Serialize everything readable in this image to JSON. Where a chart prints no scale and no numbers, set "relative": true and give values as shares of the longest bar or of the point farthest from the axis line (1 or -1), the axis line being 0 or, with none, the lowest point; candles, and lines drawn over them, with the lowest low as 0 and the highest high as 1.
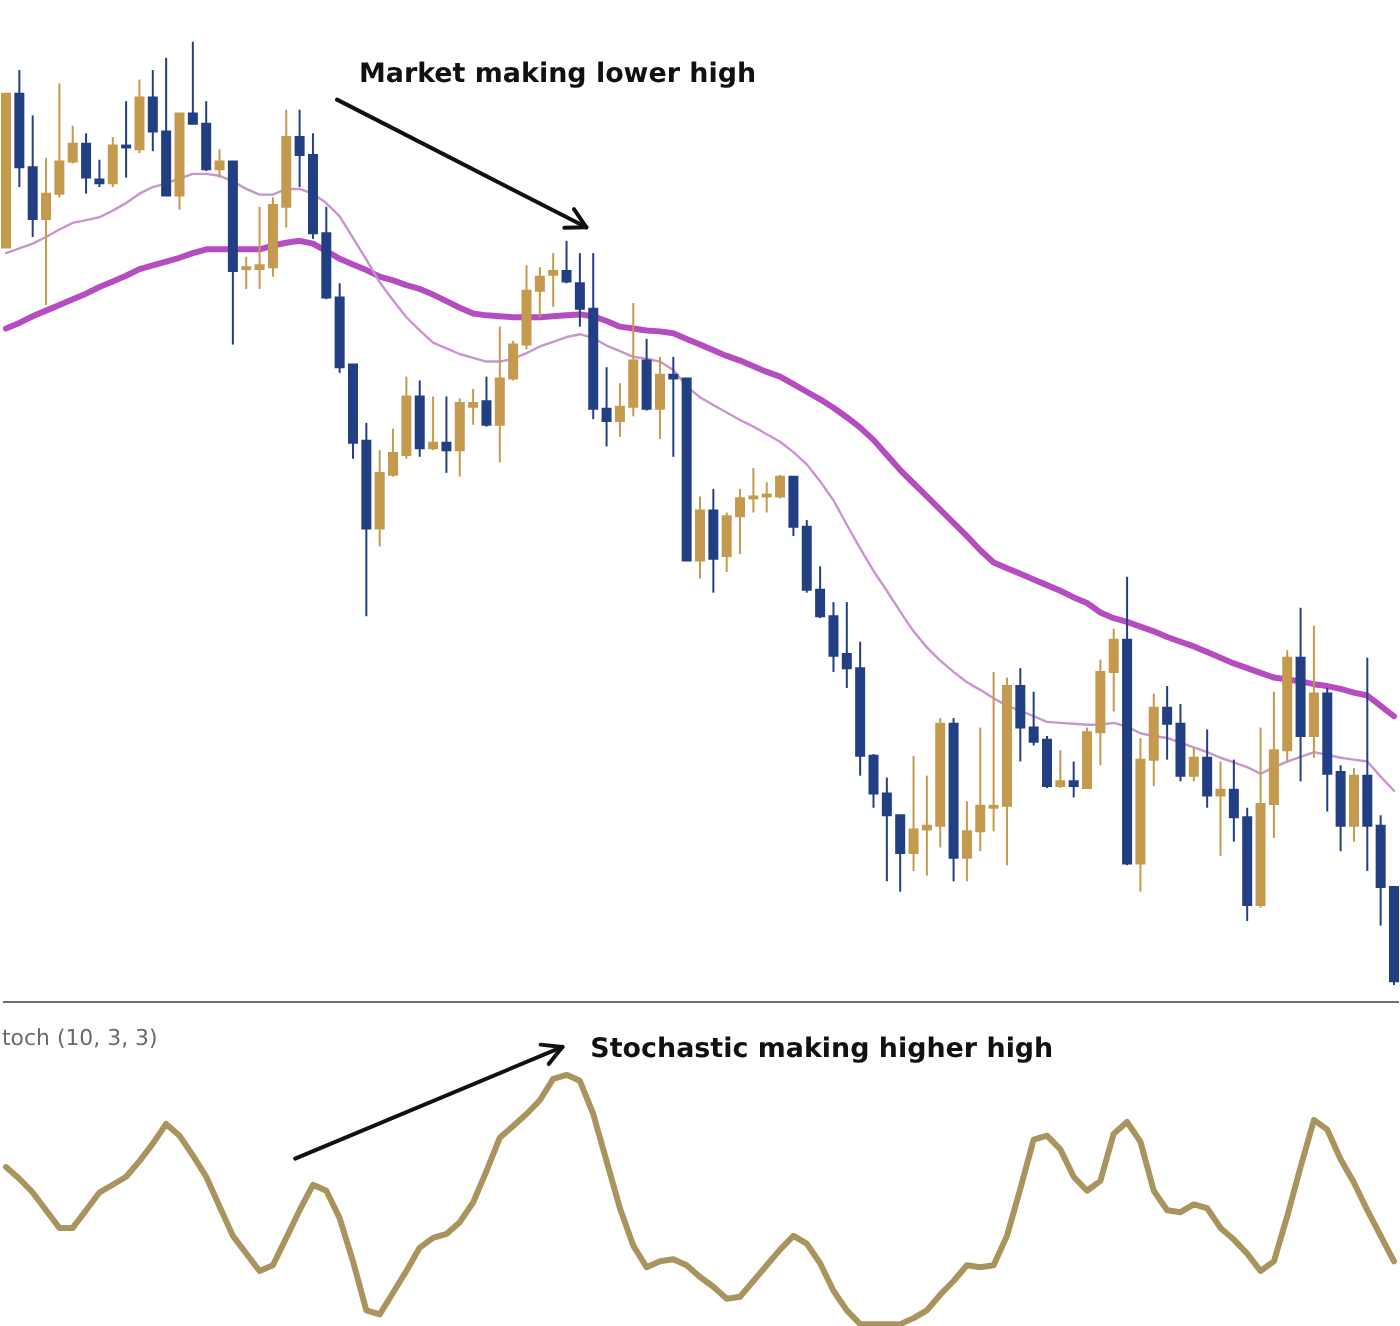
{
  "chart_data": [
    {
      "type": "candlestick",
      "relative": true,
      "annotations": [
        "Market making lower high"
      ],
      "categories": [
        null,
        null,
        null,
        null,
        null,
        null,
        null,
        null,
        null,
        null,
        null,
        null,
        null,
        null,
        null,
        null,
        null,
        null,
        null,
        null,
        null,
        null,
        null,
        null,
        null,
        null,
        null,
        null,
        null,
        null,
        null,
        null,
        null,
        null,
        null,
        null,
        null,
        null,
        null,
        null,
        null,
        null,
        null,
        null,
        null,
        null,
        null,
        null,
        null,
        null,
        null,
        null,
        null,
        null,
        null,
        null,
        null,
        null,
        null,
        null,
        null,
        null,
        null,
        null,
        null,
        null,
        null,
        null,
        null,
        null,
        null,
        null,
        null,
        null,
        null,
        null,
        null,
        null,
        null,
        null,
        null,
        null,
        null,
        null,
        null,
        null,
        null,
        null,
        null,
        null,
        null,
        null,
        null,
        null,
        null,
        null,
        null,
        null,
        null,
        null,
        null,
        null,
        null,
        null,
        null
      ],
      "ohlc": [
        [
          0.782,
          0.945,
          0.782,
          0.945
        ],
        [
          0.945,
          0.97,
          0.846,
          0.867
        ],
        [
          0.867,
          0.922,
          0.793,
          0.812
        ],
        [
          0.812,
          0.877,
          0.721,
          0.839
        ],
        [
          0.839,
          0.956,
          0.835,
          0.873
        ],
        [
          0.873,
          0.911,
          0.871,
          0.892
        ],
        [
          0.892,
          0.903,
          0.839,
          0.856
        ],
        [
          0.854,
          0.875,
          0.846,
          0.85
        ],
        [
          0.85,
          0.899,
          0.846,
          0.89
        ],
        [
          0.89,
          0.937,
          0.856,
          0.888
        ],
        [
          0.886,
          0.96,
          0.882,
          0.941
        ],
        [
          0.941,
          0.97,
          0.884,
          0.905
        ],
        [
          0.905,
          0.983,
          0.837,
          0.837
        ],
        [
          0.837,
          0.924,
          0.822,
          0.924
        ],
        [
          0.924,
          1.0,
          0.913,
          0.913
        ],
        [
          0.913,
          0.937,
          0.863,
          0.865
        ],
        [
          0.865,
          0.886,
          0.856,
          0.873
        ],
        [
          0.873,
          0.873,
          0.679,
          0.757
        ],
        [
          0.759,
          0.772,
          0.738,
          0.761
        ],
        [
          0.759,
          0.825,
          0.738,
          0.763
        ],
        [
          0.761,
          0.835,
          0.751,
          0.827
        ],
        [
          0.825,
          0.928,
          0.803,
          0.899
        ],
        [
          0.899,
          0.928,
          0.846,
          0.88
        ],
        [
          0.88,
          0.903,
          0.791,
          0.797
        ],
        [
          0.797,
          0.825,
          0.727,
          0.729
        ],
        [
          0.729,
          0.744,
          0.649,
          0.655
        ],
        [
          0.658,
          0.658,
          0.558,
          0.575
        ],
        [
          0.577,
          0.596,
          0.391,
          0.484
        ],
        [
          0.484,
          0.567,
          0.465,
          0.543
        ],
        [
          0.541,
          0.59,
          0.539,
          0.564
        ],
        [
          0.562,
          0.645,
          0.558,
          0.624
        ],
        [
          0.624,
          0.641,
          0.56,
          0.569
        ],
        [
          0.569,
          0.624,
          0.567,
          0.575
        ],
        [
          0.575,
          0.624,
          0.543,
          0.567
        ],
        [
          0.567,
          0.622,
          0.539,
          0.617
        ],
        [
          0.613,
          0.632,
          0.594,
          0.617
        ],
        [
          0.619,
          0.645,
          0.592,
          0.594
        ],
        [
          0.594,
          0.698,
          0.554,
          0.643
        ],
        [
          0.643,
          0.683,
          0.641,
          0.679
        ],
        [
          0.679,
          0.763,
          0.674,
          0.736
        ],
        [
          0.736,
          0.761,
          0.708,
          0.751
        ],
        [
          0.753,
          0.776,
          0.719,
          0.757
        ],
        [
          0.757,
          0.789,
          0.744,
          0.746
        ],
        [
          0.744,
          0.776,
          0.698,
          0.717
        ],
        [
          0.717,
          0.776,
          0.6,
          0.611
        ],
        [
          0.611,
          0.655,
          0.571,
          0.598
        ],
        [
          0.598,
          0.638,
          0.581,
          0.613
        ],
        [
          0.613,
          0.723,
          0.603,
          0.662
        ],
        [
          0.662,
          0.685,
          0.609,
          0.611
        ],
        [
          0.611,
          0.666,
          0.579,
          0.647
        ],
        [
          0.647,
          0.666,
          0.56,
          0.643
        ],
        [
          0.643,
          0.643,
          0.45,
          0.45
        ],
        [
          0.45,
          0.518,
          0.431,
          0.503
        ],
        [
          0.503,
          0.526,
          0.416,
          0.452
        ],
        [
          0.455,
          0.501,
          0.438,
          0.497
        ],
        [
          0.497,
          0.526,
          0.457,
          0.516
        ],
        [
          0.516,
          0.548,
          0.501,
          0.518
        ],
        [
          0.518,
          0.533,
          0.501,
          0.52
        ],
        [
          0.518,
          0.541,
          0.516,
          0.539
        ],
        [
          0.539,
          0.539,
          0.476,
          0.486
        ],
        [
          0.486,
          0.493,
          0.416,
          0.419
        ],
        [
          0.419,
          0.444,
          0.389,
          0.391
        ],
        [
          0.391,
          0.406,
          0.332,
          0.349
        ],
        [
          0.351,
          0.406,
          0.315,
          0.336
        ],
        [
          0.336,
          0.364,
          0.222,
          0.243
        ],
        [
          0.243,
          0.245,
          0.188,
          0.203
        ],
        [
          0.203,
          0.22,
          0.11,
          0.18
        ],
        [
          0.18,
          0.18,
          0.099,
          0.14
        ],
        [
          0.14,
          0.243,
          0.121,
          0.165
        ],
        [
          0.165,
          0.222,
          0.116,
          0.169
        ],
        [
          0.169,
          0.283,
          0.146,
          0.277
        ],
        [
          0.277,
          0.283,
          0.11,
          0.135
        ],
        [
          0.135,
          0.195,
          0.11,
          0.163
        ],
        [
          0.163,
          0.273,
          0.142,
          0.19
        ],
        [
          0.188,
          0.332,
          0.163,
          0.19
        ],
        [
          0.19,
          0.326,
          0.127,
          0.317
        ],
        [
          0.317,
          0.336,
          0.237,
          0.273
        ],
        [
          0.273,
          0.311,
          0.254,
          0.258
        ],
        [
          0.26,
          0.264,
          0.209,
          0.211
        ],
        [
          0.211,
          0.249,
          0.209,
          0.216
        ],
        [
          0.216,
          0.237,
          0.199,
          0.211
        ],
        [
          0.209,
          0.273,
          0.209,
          0.268
        ],
        [
          0.268,
          0.345,
          0.233,
          0.332
        ],
        [
          0.332,
          0.378,
          0.29,
          0.366
        ],
        [
          0.366,
          0.433,
          0.127,
          0.129
        ],
        [
          0.129,
          0.262,
          0.099,
          0.239
        ],
        [
          0.239,
          0.309,
          0.211,
          0.294
        ],
        [
          0.294,
          0.317,
          0.239,
          0.277
        ],
        [
          0.277,
          0.298,
          0.216,
          0.222
        ],
        [
          0.222,
          0.252,
          0.216,
          0.241
        ],
        [
          0.241,
          0.271,
          0.188,
          0.201
        ],
        [
          0.201,
          0.237,
          0.137,
          0.207
        ],
        [
          0.207,
          0.239,
          0.152,
          0.178
        ],
        [
          0.178,
          0.188,
          0.068,
          0.085
        ],
        [
          0.085,
          0.273,
          0.082,
          0.192
        ],
        [
          0.192,
          0.311,
          0.156,
          0.249
        ],
        [
          0.249,
          0.355,
          0.237,
          0.347
        ],
        [
          0.347,
          0.4,
          0.216,
          0.264
        ],
        [
          0.264,
          0.381,
          0.241,
          0.309
        ],
        [
          0.309,
          0.315,
          0.184,
          0.224
        ],
        [
          0.226,
          0.233,
          0.142,
          0.169
        ],
        [
          0.169,
          0.23,
          0.152,
          0.222
        ],
        [
          0.222,
          0.347,
          0.121,
          0.169
        ],
        [
          0.169,
          0.18,
          0.063,
          0.104
        ],
        [
          0.104,
          0.104,
          0.0,
          0.004
        ]
      ],
      "colors": [
        "#c49a4f",
        "#233f84",
        "#233f84",
        "#c49a4f",
        "#c49a4f",
        "#c49a4f",
        "#233f84",
        "#233f84",
        "#c49a4f",
        "#233f84",
        "#c49a4f",
        "#233f84",
        "#233f84",
        "#c49a4f",
        "#233f84",
        "#233f84",
        "#c49a4f",
        "#233f84",
        "#c49a4f",
        "#c49a4f",
        "#c49a4f",
        "#c49a4f",
        "#233f84",
        "#233f84",
        "#233f84",
        "#233f84",
        "#233f84",
        "#233f84",
        "#c49a4f",
        "#c49a4f",
        "#c49a4f",
        "#233f84",
        "#c49a4f",
        "#233f84",
        "#c49a4f",
        "#c49a4f",
        "#233f84",
        "#c49a4f",
        "#c49a4f",
        "#c49a4f",
        "#c49a4f",
        "#c49a4f",
        "#233f84",
        "#233f84",
        "#233f84",
        "#233f84",
        "#c49a4f",
        "#c49a4f",
        "#233f84",
        "#c49a4f",
        "#233f84",
        "#233f84",
        "#c49a4f",
        "#233f84",
        "#c49a4f",
        "#c49a4f",
        "#c49a4f",
        "#c49a4f",
        "#c49a4f",
        "#233f84",
        "#233f84",
        "#233f84",
        "#233f84",
        "#233f84",
        "#233f84",
        "#233f84",
        "#233f84",
        "#233f84",
        "#c49a4f",
        "#c49a4f",
        "#c49a4f",
        "#233f84",
        "#c49a4f",
        "#c49a4f",
        "#c49a4f",
        "#c49a4f",
        "#233f84",
        "#233f84",
        "#233f84",
        "#c49a4f",
        "#233f84",
        "#c49a4f",
        "#c49a4f",
        "#c49a4f",
        "#233f84",
        "#c49a4f",
        "#c49a4f",
        "#233f84",
        "#233f84",
        "#c49a4f",
        "#233f84",
        "#c49a4f",
        "#233f84",
        "#233f84",
        "#c49a4f",
        "#c49a4f",
        "#c49a4f",
        "#233f84",
        "#c49a4f",
        "#233f84",
        "#233f84",
        "#c49a4f",
        "#233f84",
        "#233f84",
        "#233f84"
      ],
      "series": [
        {
          "type": "line",
          "color": "#b54cc0",
          "values": [
            0.696,
            0.702,
            0.709,
            0.715,
            0.721,
            0.727,
            0.733,
            0.74,
            0.746,
            0.752,
            0.759,
            0.763,
            0.767,
            0.771,
            0.776,
            0.78,
            0.78,
            0.78,
            0.78,
            0.78,
            0.784,
            0.787,
            0.789,
            0.786,
            0.778,
            0.77,
            0.764,
            0.758,
            0.751,
            0.747,
            0.742,
            0.738,
            0.732,
            0.725,
            0.718,
            0.712,
            0.71,
            0.709,
            0.708,
            0.708,
            0.708,
            0.709,
            0.71,
            0.711,
            0.709,
            0.704,
            0.698,
            0.696,
            0.694,
            0.693,
            0.691,
            0.685,
            0.679,
            0.673,
            0.667,
            0.662,
            0.656,
            0.65,
            0.645,
            0.637,
            0.629,
            0.621,
            0.612,
            0.602,
            0.591,
            0.578,
            0.562,
            0.546,
            0.532,
            0.518,
            0.504,
            0.49,
            0.476,
            0.461,
            0.448,
            0.442,
            0.436,
            0.43,
            0.424,
            0.418,
            0.411,
            0.405,
            0.395,
            0.389,
            0.385,
            0.38,
            0.375,
            0.369,
            0.364,
            0.359,
            0.353,
            0.347,
            0.341,
            0.336,
            0.331,
            0.326,
            0.324,
            0.322,
            0.319,
            0.317,
            0.314,
            0.31,
            0.307,
            0.296,
            0.285
          ]
        },
        {
          "type": "line",
          "color": "#c895cf",
          "values": [
            0.776,
            0.781,
            0.786,
            0.793,
            0.801,
            0.808,
            0.811,
            0.814,
            0.821,
            0.829,
            0.839,
            0.846,
            0.85,
            0.855,
            0.86,
            0.86,
            0.858,
            0.852,
            0.844,
            0.838,
            0.838,
            0.844,
            0.844,
            0.839,
            0.829,
            0.815,
            0.792,
            0.769,
            0.745,
            0.726,
            0.708,
            0.694,
            0.681,
            0.675,
            0.669,
            0.665,
            0.661,
            0.661,
            0.664,
            0.67,
            0.677,
            0.682,
            0.687,
            0.69,
            0.686,
            0.678,
            0.672,
            0.666,
            0.664,
            0.661,
            0.652,
            0.635,
            0.623,
            0.615,
            0.607,
            0.599,
            0.592,
            0.584,
            0.576,
            0.565,
            0.552,
            0.534,
            0.514,
            0.488,
            0.463,
            0.439,
            0.418,
            0.396,
            0.375,
            0.358,
            0.344,
            0.332,
            0.321,
            0.313,
            0.304,
            0.296,
            0.291,
            0.285,
            0.279,
            0.278,
            0.277,
            0.276,
            0.276,
            0.278,
            0.274,
            0.267,
            0.264,
            0.262,
            0.257,
            0.252,
            0.247,
            0.241,
            0.236,
            0.231,
            0.224,
            0.231,
            0.237,
            0.242,
            0.247,
            0.244,
            0.241,
            0.239,
            0.237,
            0.221,
            0.206
          ]
        }
      ]
    },
    {
      "type": "line",
      "relative": true,
      "title": "toch (10, 3, 3)",
      "annotations": [
        "Stochastic making higher high"
      ],
      "categories": [
        null,
        null,
        null,
        null,
        null,
        null,
        null,
        null,
        null,
        null,
        null,
        null,
        null,
        null,
        null,
        null,
        null,
        null,
        null,
        null,
        null,
        null,
        null,
        null,
        null,
        null,
        null,
        null,
        null,
        null,
        null,
        null,
        null,
        null,
        null,
        null,
        null,
        null,
        null,
        null,
        null,
        null,
        null,
        null,
        null,
        null,
        null,
        null,
        null,
        null,
        null,
        null,
        null,
        null,
        null,
        null,
        null,
        null,
        null,
        null,
        null,
        null,
        null,
        null,
        null,
        null,
        null,
        null,
        null,
        null,
        null,
        null,
        null,
        null,
        null,
        null,
        null,
        null,
        null,
        null,
        null,
        null,
        null,
        null,
        null,
        null,
        null,
        null,
        null,
        null,
        null,
        null,
        null,
        null,
        null,
        null,
        null,
        null,
        null,
        null,
        null,
        null,
        null,
        null,
        null
      ],
      "color": "#a8945c",
      "values": [
        0.63,
        0.583,
        0.528,
        0.457,
        0.386,
        0.386,
        0.457,
        0.528,
        0.559,
        0.591,
        0.654,
        0.724,
        0.803,
        0.756,
        0.677,
        0.591,
        0.472,
        0.354,
        0.283,
        0.213,
        0.236,
        0.346,
        0.457,
        0.559,
        0.535,
        0.425,
        0.252,
        0.055,
        0.039,
        0.126,
        0.213,
        0.307,
        0.346,
        0.362,
        0.409,
        0.488,
        0.614,
        0.748,
        0.795,
        0.843,
        0.898,
        0.984,
        1.0,
        0.976,
        0.843,
        0.654,
        0.465,
        0.315,
        0.228,
        0.252,
        0.26,
        0.236,
        0.189,
        0.15,
        0.102,
        0.11,
        0.173,
        0.236,
        0.299,
        0.354,
        0.323,
        0.244,
        0.134,
        0.055,
        0,
        0,
        0,
        0,
        0.024,
        0.055,
        0.118,
        0.173,
        0.236,
        0.228,
        0.236,
        0.354,
        0.543,
        0.74,
        0.756,
        0.701,
        0.591,
        0.535,
        0.575,
        0.764,
        0.811,
        0.732,
        0.535,
        0.457,
        0.449,
        0.48,
        0.465,
        0.386,
        0.339,
        0.283,
        0.213,
        0.252,
        0.433,
        0.63,
        0.819,
        0.78,
        0.661,
        0.567,
        0.457,
        0.354,
        0.252
      ]
    }
  ]
}
